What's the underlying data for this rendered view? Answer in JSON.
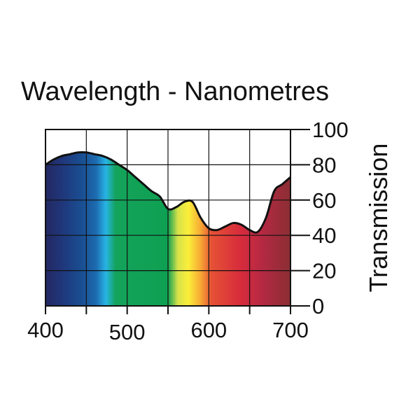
{
  "chart_data": {
    "type": "area",
    "title": "Wavelength - Nanometres",
    "xlabel": "Wavelength - Nanometres",
    "ylabel": "Transmission",
    "xlim": [
      400,
      700
    ],
    "ylim": [
      0,
      100
    ],
    "xticks": [
      400,
      500,
      600,
      700
    ],
    "yticks": [
      0,
      20,
      40,
      60,
      80,
      100
    ],
    "grid": true,
    "fill": "visible spectrum gradient",
    "series": [
      {
        "name": "Transmission",
        "x": [
          400,
          410,
          420,
          430,
          440,
          450,
          460,
          470,
          480,
          490,
          500,
          510,
          520,
          530,
          540,
          550,
          560,
          570,
          580,
          590,
          600,
          610,
          620,
          630,
          640,
          650,
          660,
          670,
          680,
          690,
          700
        ],
        "values": [
          80,
          83,
          85,
          86,
          87,
          87,
          86,
          85,
          83,
          80,
          77,
          73,
          69,
          65,
          62,
          55,
          56,
          59,
          59,
          50,
          44,
          43,
          45,
          47,
          46,
          43,
          42,
          50,
          65,
          69,
          73
        ]
      }
    ],
    "spectrum_colors": [
      {
        "at": 400,
        "color": "#232861"
      },
      {
        "at": 420,
        "color": "#20367a"
      },
      {
        "at": 445,
        "color": "#1a4f93"
      },
      {
        "at": 462,
        "color": "#1d6bb0"
      },
      {
        "at": 474,
        "color": "#27b5e6"
      },
      {
        "at": 486,
        "color": "#14a35a"
      },
      {
        "at": 550,
        "color": "#0ea052"
      },
      {
        "at": 562,
        "color": "#d7e24a"
      },
      {
        "at": 575,
        "color": "#fbee3a"
      },
      {
        "at": 590,
        "color": "#f7a834"
      },
      {
        "at": 603,
        "color": "#e65136"
      },
      {
        "at": 640,
        "color": "#d62b3c"
      },
      {
        "at": 665,
        "color": "#b52942"
      },
      {
        "at": 700,
        "color": "#8a2e33"
      }
    ]
  }
}
